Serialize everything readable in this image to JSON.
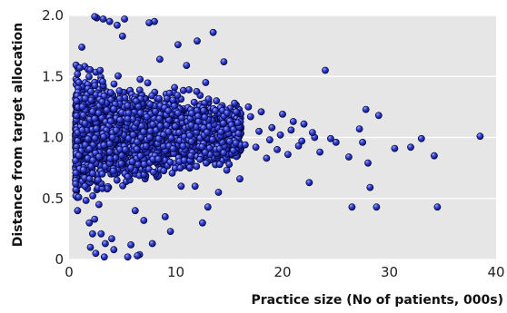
{
  "chart_data": {
    "type": "scatter",
    "title": "",
    "xlabel": "Practice size (No of patients, 000s)",
    "ylabel": "Distance from target allocation",
    "xlim": [
      0,
      40
    ],
    "ylim": [
      0,
      2.0
    ],
    "x_ticks": [
      0,
      10,
      20,
      30,
      40
    ],
    "y_ticks": [
      0,
      0.5,
      1.0,
      1.5,
      2.0
    ],
    "x_tick_labels": [
      "0",
      "10",
      "20",
      "30",
      "40"
    ],
    "y_tick_labels": [
      "0",
      "0.5",
      "1.0",
      "1.5",
      "2.0"
    ],
    "grid": "horizontal",
    "series": [
      {
        "marker": "sphere",
        "points": [
          [
            38.5,
            1.01
          ],
          [
            34.5,
            0.43
          ],
          [
            34.2,
            0.85
          ],
          [
            33.0,
            0.99
          ],
          [
            32.0,
            0.92
          ],
          [
            30.5,
            0.91
          ],
          [
            29.0,
            1.18
          ],
          [
            28.8,
            0.43
          ],
          [
            28.2,
            0.59
          ],
          [
            28.0,
            0.79
          ],
          [
            27.8,
            1.23
          ],
          [
            27.5,
            0.96
          ],
          [
            27.2,
            1.07
          ],
          [
            26.5,
            0.43
          ],
          [
            26.2,
            0.84
          ],
          [
            25.0,
            0.96
          ],
          [
            24.5,
            0.99
          ],
          [
            24.0,
            1.55
          ],
          [
            23.5,
            0.88
          ],
          [
            23.0,
            1.0
          ],
          [
            22.5,
            0.63
          ],
          [
            22.0,
            1.11
          ],
          [
            21.5,
            0.93
          ],
          [
            21.0,
            1.13
          ],
          [
            20.5,
            0.86
          ],
          [
            20.0,
            1.19
          ],
          [
            19.5,
            0.9
          ],
          [
            19.0,
            1.08
          ],
          [
            18.5,
            0.83
          ],
          [
            18.0,
            1.21
          ],
          [
            17.5,
            0.92
          ],
          [
            17.0,
            1.17
          ],
          [
            16.5,
            0.94
          ],
          [
            16.0,
            0.66
          ],
          [
            15.5,
            1.28
          ],
          [
            14.5,
            1.62
          ],
          [
            14.0,
            0.55
          ],
          [
            13.5,
            1.86
          ],
          [
            13.0,
            0.43
          ],
          [
            12.5,
            0.3
          ],
          [
            12.0,
            1.79
          ],
          [
            11.8,
            0.6
          ],
          [
            11.0,
            1.59
          ],
          [
            10.2,
            1.76
          ],
          [
            9.5,
            0.23
          ],
          [
            9.0,
            0.35
          ],
          [
            8.5,
            1.64
          ],
          [
            8.0,
            1.95
          ],
          [
            7.8,
            0.13
          ],
          [
            7.5,
            1.94
          ],
          [
            7.0,
            0.32
          ],
          [
            6.6,
            0.04
          ],
          [
            6.4,
            0.03
          ],
          [
            6.2,
            0.4
          ],
          [
            5.5,
            0.02
          ],
          [
            5.2,
            1.97
          ],
          [
            5.0,
            1.83
          ],
          [
            4.5,
            1.92
          ],
          [
            4.2,
            0.08
          ],
          [
            4.0,
            0.17
          ],
          [
            3.8,
            1.95
          ],
          [
            3.4,
            0.13
          ],
          [
            3.3,
            0.02
          ],
          [
            3.0,
            0.21
          ],
          [
            2.8,
            0.45
          ],
          [
            2.6,
            1.98
          ],
          [
            2.4,
            0.33
          ],
          [
            2.2,
            0.21
          ],
          [
            2.0,
            0.1
          ],
          [
            1.9,
            0.3
          ],
          [
            1.5,
            0.6
          ],
          [
            1.2,
            1.74
          ],
          [
            1.0,
            1.57
          ],
          [
            0.9,
            0.51
          ],
          [
            0.8,
            0.4
          ],
          [
            0.7,
            1.3
          ],
          [
            2.4,
            1.99
          ],
          [
            3.2,
            1.97
          ],
          [
            2.5,
            0.05
          ],
          [
            5.8,
            0.12
          ],
          [
            10.5,
            0.6
          ],
          [
            11.4,
            0.85
          ],
          [
            12.8,
            1.45
          ],
          [
            13.8,
            1.3
          ],
          [
            15.0,
            0.78
          ],
          [
            15.8,
            1.12
          ],
          [
            16.8,
            1.25
          ],
          [
            17.8,
            1.05
          ],
          [
            18.8,
            0.98
          ],
          [
            19.8,
            1.02
          ],
          [
            20.8,
            1.06
          ],
          [
            21.8,
            0.97
          ],
          [
            22.8,
            1.04
          ],
          [
            14.8,
            1.2
          ]
        ]
      }
    ]
  }
}
